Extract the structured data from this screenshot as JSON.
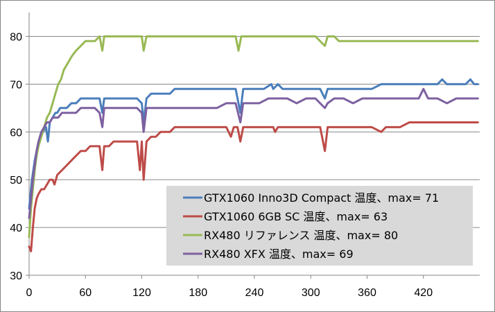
{
  "chart_data": {
    "type": "line",
    "title": "",
    "xlabel": "",
    "ylabel": "",
    "xlim": [
      0,
      480
    ],
    "ylim": [
      30,
      85
    ],
    "xticks": [
      0,
      60,
      120,
      180,
      240,
      300,
      360,
      420
    ],
    "xtick_labels": [
      "0",
      "60",
      "120",
      "180",
      "240",
      "300",
      "360",
      "420"
    ],
    "yticks": [
      30,
      40,
      50,
      60,
      70,
      80
    ],
    "ytick_labels": [
      "30",
      "40",
      "50",
      "60",
      "70",
      "80"
    ],
    "grid": "horizontal",
    "legend_position": "bottom-right",
    "series": [
      {
        "name": "GTX1060 Inno3D Compact 温度、max= 71",
        "color": "#4a7ebb",
        "points": [
          [
            0,
            44
          ],
          [
            3,
            50
          ],
          [
            6,
            54
          ],
          [
            9,
            57
          ],
          [
            12,
            59
          ],
          [
            15,
            60
          ],
          [
            18,
            61
          ],
          [
            20,
            58
          ],
          [
            22,
            62
          ],
          [
            25,
            63
          ],
          [
            28,
            64
          ],
          [
            30,
            64
          ],
          [
            33,
            65
          ],
          [
            36,
            65
          ],
          [
            40,
            65
          ],
          [
            45,
            66
          ],
          [
            50,
            66
          ],
          [
            55,
            67
          ],
          [
            60,
            67
          ],
          [
            65,
            67
          ],
          [
            70,
            67
          ],
          [
            75,
            67
          ],
          [
            78,
            64
          ],
          [
            80,
            67
          ],
          [
            85,
            67
          ],
          [
            90,
            67
          ],
          [
            95,
            67
          ],
          [
            100,
            67
          ],
          [
            105,
            67
          ],
          [
            110,
            67
          ],
          [
            115,
            67
          ],
          [
            120,
            66
          ],
          [
            122,
            62
          ],
          [
            125,
            67
          ],
          [
            130,
            68
          ],
          [
            135,
            68
          ],
          [
            140,
            68
          ],
          [
            145,
            68
          ],
          [
            150,
            68
          ],
          [
            155,
            69
          ],
          [
            160,
            69
          ],
          [
            165,
            69
          ],
          [
            170,
            69
          ],
          [
            180,
            69
          ],
          [
            190,
            69
          ],
          [
            200,
            69
          ],
          [
            210,
            69
          ],
          [
            220,
            69
          ],
          [
            225,
            64
          ],
          [
            228,
            69
          ],
          [
            235,
            69
          ],
          [
            240,
            69
          ],
          [
            250,
            69
          ],
          [
            258,
            70
          ],
          [
            260,
            69
          ],
          [
            265,
            70
          ],
          [
            270,
            69
          ],
          [
            280,
            69
          ],
          [
            290,
            69
          ],
          [
            300,
            69
          ],
          [
            310,
            69
          ],
          [
            315,
            67
          ],
          [
            318,
            69
          ],
          [
            325,
            69
          ],
          [
            335,
            69
          ],
          [
            345,
            69
          ],
          [
            355,
            69
          ],
          [
            365,
            69
          ],
          [
            375,
            70
          ],
          [
            385,
            70
          ],
          [
            395,
            70
          ],
          [
            405,
            70
          ],
          [
            415,
            70
          ],
          [
            425,
            70
          ],
          [
            435,
            70
          ],
          [
            440,
            71
          ],
          [
            445,
            70
          ],
          [
            455,
            70
          ],
          [
            465,
            70
          ],
          [
            470,
            71
          ],
          [
            474,
            70
          ],
          [
            478,
            70
          ]
        ]
      },
      {
        "name": "GTX1060 6GB SC 温度、max= 63",
        "color": "#be4b48",
        "points": [
          [
            0,
            36
          ],
          [
            2,
            35
          ],
          [
            4,
            40
          ],
          [
            6,
            44
          ],
          [
            8,
            46
          ],
          [
            10,
            47
          ],
          [
            13,
            48
          ],
          [
            16,
            48
          ],
          [
            19,
            49
          ],
          [
            22,
            50
          ],
          [
            25,
            50
          ],
          [
            27,
            49
          ],
          [
            30,
            51
          ],
          [
            35,
            52
          ],
          [
            40,
            53
          ],
          [
            45,
            54
          ],
          [
            50,
            55
          ],
          [
            55,
            56
          ],
          [
            60,
            56
          ],
          [
            65,
            57
          ],
          [
            70,
            57
          ],
          [
            75,
            57
          ],
          [
            78,
            52
          ],
          [
            80,
            57
          ],
          [
            85,
            57
          ],
          [
            90,
            58
          ],
          [
            95,
            58
          ],
          [
            100,
            58
          ],
          [
            105,
            58
          ],
          [
            110,
            58
          ],
          [
            115,
            58
          ],
          [
            118,
            52
          ],
          [
            120,
            58
          ],
          [
            122,
            50
          ],
          [
            125,
            58
          ],
          [
            130,
            59
          ],
          [
            135,
            59
          ],
          [
            140,
            60
          ],
          [
            145,
            60
          ],
          [
            150,
            60
          ],
          [
            155,
            61
          ],
          [
            160,
            61
          ],
          [
            165,
            61
          ],
          [
            170,
            61
          ],
          [
            180,
            61
          ],
          [
            190,
            61
          ],
          [
            200,
            61
          ],
          [
            210,
            61
          ],
          [
            215,
            59
          ],
          [
            218,
            61
          ],
          [
            222,
            61
          ],
          [
            225,
            58
          ],
          [
            228,
            61
          ],
          [
            235,
            61
          ],
          [
            240,
            61
          ],
          [
            250,
            61
          ],
          [
            260,
            61
          ],
          [
            262,
            60
          ],
          [
            265,
            61
          ],
          [
            270,
            61
          ],
          [
            280,
            61
          ],
          [
            290,
            61
          ],
          [
            300,
            61
          ],
          [
            310,
            61
          ],
          [
            315,
            56
          ],
          [
            318,
            61
          ],
          [
            325,
            61
          ],
          [
            335,
            61
          ],
          [
            345,
            61
          ],
          [
            355,
            61
          ],
          [
            365,
            61
          ],
          [
            375,
            60
          ],
          [
            380,
            61
          ],
          [
            385,
            61
          ],
          [
            395,
            61
          ],
          [
            405,
            62
          ],
          [
            415,
            62
          ],
          [
            425,
            62
          ],
          [
            435,
            62
          ],
          [
            445,
            62
          ],
          [
            455,
            62
          ],
          [
            465,
            62
          ],
          [
            478,
            62
          ]
        ]
      },
      {
        "name": "RX480 リファレンス 温度、max= 80",
        "color": "#98b954",
        "points": [
          [
            0,
            38
          ],
          [
            2,
            44
          ],
          [
            4,
            48
          ],
          [
            6,
            52
          ],
          [
            8,
            55
          ],
          [
            10,
            57
          ],
          [
            13,
            59
          ],
          [
            16,
            61
          ],
          [
            19,
            63
          ],
          [
            22,
            64
          ],
          [
            25,
            66
          ],
          [
            28,
            68
          ],
          [
            31,
            70
          ],
          [
            34,
            71
          ],
          [
            37,
            73
          ],
          [
            40,
            74
          ],
          [
            43,
            75
          ],
          [
            46,
            76
          ],
          [
            50,
            77
          ],
          [
            55,
            78
          ],
          [
            60,
            79
          ],
          [
            65,
            79
          ],
          [
            70,
            79
          ],
          [
            75,
            80
          ],
          [
            78,
            77
          ],
          [
            80,
            80
          ],
          [
            85,
            80
          ],
          [
            90,
            80
          ],
          [
            95,
            80
          ],
          [
            100,
            80
          ],
          [
            105,
            80
          ],
          [
            110,
            80
          ],
          [
            115,
            80
          ],
          [
            120,
            80
          ],
          [
            122,
            77
          ],
          [
            125,
            80
          ],
          [
            130,
            80
          ],
          [
            140,
            80
          ],
          [
            150,
            80
          ],
          [
            160,
            80
          ],
          [
            170,
            80
          ],
          [
            180,
            80
          ],
          [
            190,
            80
          ],
          [
            200,
            80
          ],
          [
            210,
            80
          ],
          [
            220,
            80
          ],
          [
            223,
            77
          ],
          [
            226,
            80
          ],
          [
            235,
            80
          ],
          [
            245,
            80
          ],
          [
            255,
            80
          ],
          [
            265,
            80
          ],
          [
            275,
            80
          ],
          [
            285,
            80
          ],
          [
            295,
            80
          ],
          [
            305,
            80
          ],
          [
            315,
            78
          ],
          [
            318,
            80
          ],
          [
            325,
            80
          ],
          [
            330,
            79
          ],
          [
            335,
            79
          ],
          [
            345,
            79
          ],
          [
            355,
            79
          ],
          [
            365,
            79
          ],
          [
            375,
            79
          ],
          [
            385,
            79
          ],
          [
            395,
            79
          ],
          [
            405,
            79
          ],
          [
            415,
            79
          ],
          [
            425,
            79
          ],
          [
            435,
            79
          ],
          [
            445,
            79
          ],
          [
            455,
            79
          ],
          [
            465,
            79
          ],
          [
            478,
            79
          ]
        ]
      },
      {
        "name": "RX480 XFX 温度、max= 69",
        "color": "#7d60a0",
        "points": [
          [
            0,
            42
          ],
          [
            2,
            46
          ],
          [
            4,
            50
          ],
          [
            6,
            53
          ],
          [
            8,
            56
          ],
          [
            10,
            58
          ],
          [
            13,
            60
          ],
          [
            16,
            61
          ],
          [
            19,
            62
          ],
          [
            22,
            62
          ],
          [
            25,
            63
          ],
          [
            28,
            63
          ],
          [
            31,
            63
          ],
          [
            35,
            64
          ],
          [
            40,
            64
          ],
          [
            45,
            64
          ],
          [
            50,
            64
          ],
          [
            55,
            65
          ],
          [
            60,
            65
          ],
          [
            65,
            65
          ],
          [
            70,
            65
          ],
          [
            75,
            64
          ],
          [
            78,
            61
          ],
          [
            80,
            65
          ],
          [
            85,
            65
          ],
          [
            90,
            65
          ],
          [
            95,
            65
          ],
          [
            100,
            65
          ],
          [
            105,
            65
          ],
          [
            110,
            65
          ],
          [
            115,
            65
          ],
          [
            120,
            64
          ],
          [
            122,
            60
          ],
          [
            125,
            65
          ],
          [
            130,
            65
          ],
          [
            140,
            65
          ],
          [
            150,
            65
          ],
          [
            160,
            65
          ],
          [
            170,
            65
          ],
          [
            180,
            65
          ],
          [
            190,
            65
          ],
          [
            200,
            65
          ],
          [
            210,
            66
          ],
          [
            220,
            66
          ],
          [
            225,
            62
          ],
          [
            228,
            66
          ],
          [
            235,
            66
          ],
          [
            245,
            66
          ],
          [
            255,
            67
          ],
          [
            265,
            67
          ],
          [
            275,
            67
          ],
          [
            285,
            66
          ],
          [
            295,
            67
          ],
          [
            305,
            67
          ],
          [
            315,
            65
          ],
          [
            318,
            66
          ],
          [
            325,
            67
          ],
          [
            335,
            67
          ],
          [
            345,
            66
          ],
          [
            355,
            67
          ],
          [
            365,
            67
          ],
          [
            375,
            67
          ],
          [
            385,
            67
          ],
          [
            395,
            67
          ],
          [
            405,
            67
          ],
          [
            415,
            67
          ],
          [
            420,
            69
          ],
          [
            425,
            67
          ],
          [
            435,
            67
          ],
          [
            445,
            66
          ],
          [
            455,
            67
          ],
          [
            465,
            67
          ],
          [
            478,
            67
          ]
        ]
      }
    ]
  }
}
